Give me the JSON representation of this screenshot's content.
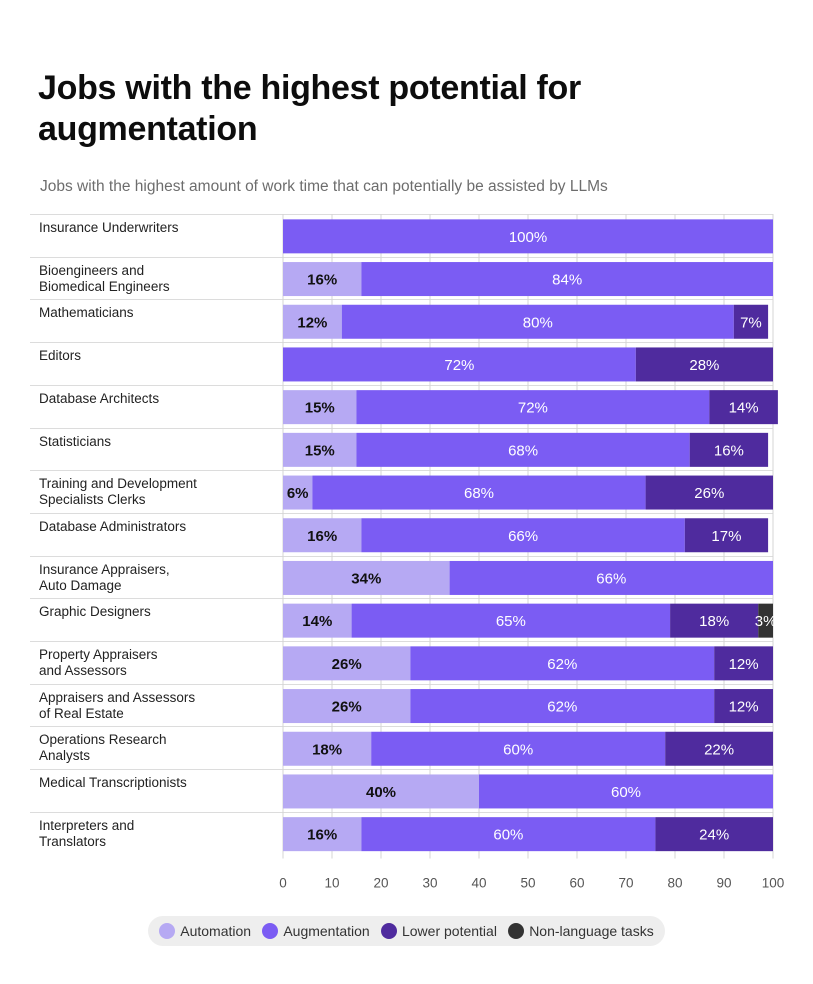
{
  "title": "Jobs with the highest potential for augmentation",
  "subtitle": "Jobs with the highest amount of work time that can potentially be assisted by LLMs",
  "colors": {
    "automation": "#b6a9f3",
    "augmentation": "#7b5cf3",
    "lower_potential": "#4f2b9e",
    "non_language": "#333333"
  },
  "legend": [
    {
      "label": "Automation",
      "key": "automation"
    },
    {
      "label": "Augmentation",
      "key": "augmentation"
    },
    {
      "label": "Lower potential",
      "key": "lower_potential"
    },
    {
      "label": "Non-language tasks",
      "key": "non_language"
    }
  ],
  "chart_data": {
    "type": "bar",
    "orientation": "horizontal",
    "stacked": true,
    "title": "Jobs with the highest potential for augmentation",
    "subtitle": "Jobs with the highest amount of work time that can potentially be assisted by LLMs",
    "xlim": [
      0,
      100
    ],
    "xticks": [
      0,
      10,
      20,
      30,
      40,
      50,
      60,
      70,
      80,
      90,
      100
    ],
    "grid": true,
    "legend_position": "bottom",
    "categories": [
      "Insurance Underwriters",
      "Bioengineers and\nBiomedical Engineers",
      "Mathematicians",
      "Editors",
      "Database Architects",
      "Statisticians",
      "Training and Development\nSpecialists Clerks",
      "Database Administrators",
      "Insurance Appraisers,\nAuto Damage",
      "Graphic Designers",
      "Property Appraisers\nand Assessors",
      "Appraisers and Assessors\nof Real Estate",
      "Operations Research\nAnalysts",
      "Medical Transcriptionists",
      "Interpreters and\nTranslators"
    ],
    "series": [
      {
        "name": "Automation",
        "key": "automation",
        "values": [
          0,
          16,
          12,
          0,
          15,
          15,
          6,
          16,
          34,
          14,
          26,
          26,
          18,
          40,
          16
        ]
      },
      {
        "name": "Augmentation",
        "key": "augmentation",
        "values": [
          100,
          84,
          80,
          72,
          72,
          68,
          68,
          66,
          66,
          65,
          62,
          62,
          60,
          60,
          60
        ]
      },
      {
        "name": "Lower potential",
        "key": "lower_potential",
        "values": [
          0,
          0,
          7,
          28,
          14,
          16,
          26,
          17,
          0,
          18,
          12,
          12,
          22,
          0,
          24
        ]
      },
      {
        "name": "Non-language tasks",
        "key": "non_language",
        "values": [
          0,
          0,
          0,
          0,
          0,
          0,
          0,
          0,
          0,
          3,
          0,
          0,
          0,
          0,
          0
        ]
      }
    ]
  }
}
